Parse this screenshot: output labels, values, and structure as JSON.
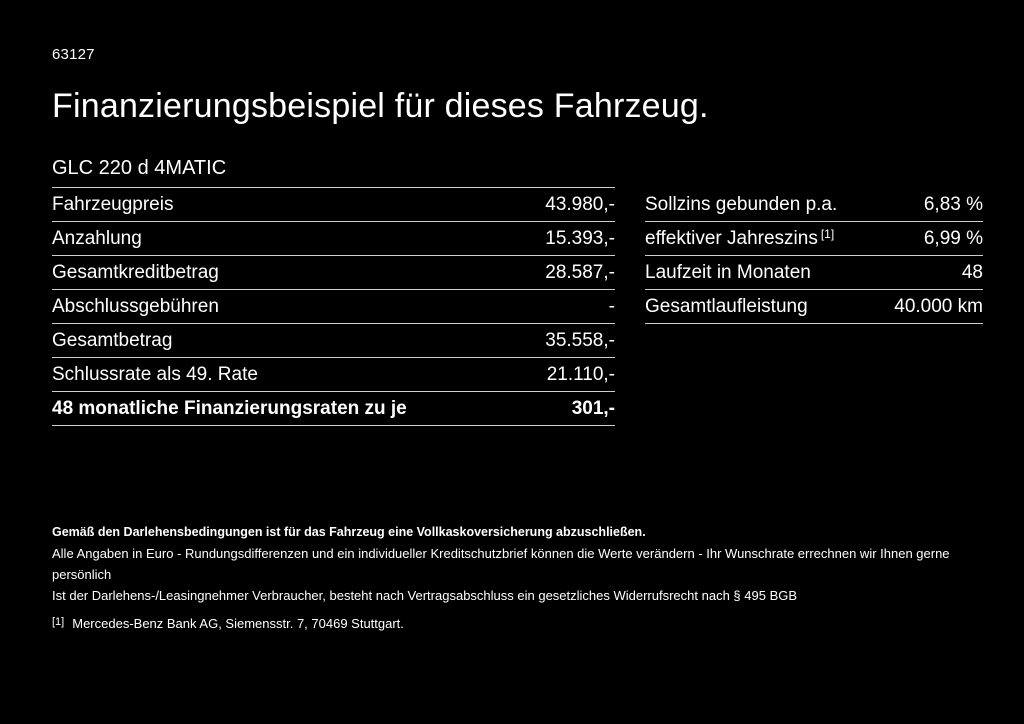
{
  "page": {
    "doc_number": "63127",
    "title": "Finanzierungsbeispiel für dieses Fahrzeug.",
    "model": "GLC 220 d 4MATIC"
  },
  "financing_table": {
    "rows": [
      {
        "label": "Fahrzeugpreis",
        "value": "43.980,-"
      },
      {
        "label": "Anzahlung",
        "value": "15.393,-"
      },
      {
        "label": "Gesamtkreditbetrag",
        "value": "28.587,-"
      },
      {
        "label": "Abschlussgebühren",
        "value": "-"
      },
      {
        "label": "Gesamtbetrag",
        "value": "35.558,-"
      },
      {
        "label": "Schlussrate als 49. Rate",
        "value": "21.110,-"
      }
    ],
    "highlight_row": {
      "label": "48 monatliche Finanzierungsraten zu je",
      "value": "301,-"
    }
  },
  "conditions_table": {
    "rows": [
      {
        "label": "Sollzins gebunden p.a.",
        "sup": "",
        "value": "6,83 %"
      },
      {
        "label": "effektiver Jahreszins",
        "sup": "[1]",
        "value": "6,99 %"
      },
      {
        "label": "Laufzeit in Monaten",
        "sup": "",
        "value": "48"
      },
      {
        "label": "Gesamtlaufleistung",
        "sup": "",
        "value": "40.000 km"
      }
    ]
  },
  "footer": {
    "insurance_note": "Gemäß den Darlehensbedingungen ist für das Fahrzeug eine Vollkaskoversicherung abzuschließen.",
    "disclaimer_line1": "Alle Angaben in Euro - Rundungsdifferenzen und ein individueller Kreditschutzbrief können die Werte verändern - Ihr Wunschrate errechnen wir Ihnen gerne persönlich",
    "disclaimer_line2": "Ist der Darlehens-/Leasingnehmer Verbraucher, besteht nach Vertragsabschluss ein gesetzliches Widerrufsrecht nach § 495 BGB",
    "footnote_marker": "[1]",
    "footnote_text": "Mercedes-Benz Bank AG, Siemensstr. 7, 70469 Stuttgart."
  },
  "colors": {
    "background": "#000000",
    "text": "#ffffff",
    "divider": "#cfcfcf"
  }
}
